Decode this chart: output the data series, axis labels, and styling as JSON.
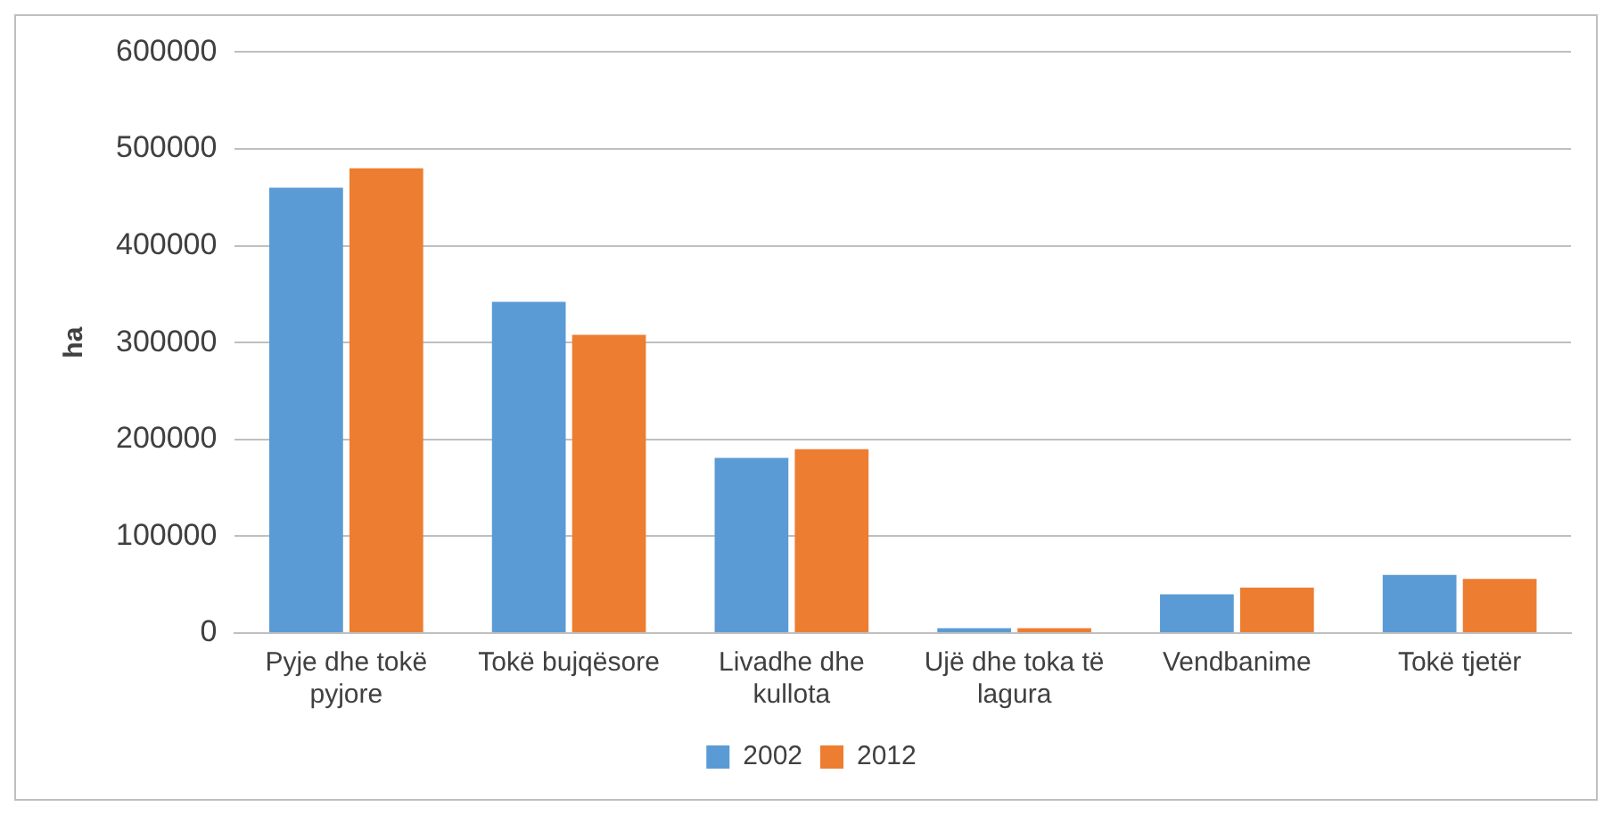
{
  "chart_data": {
    "type": "bar",
    "ylabel": "ha",
    "categories": [
      "Pyje dhe tokë pyjore",
      "Tokë bujqësore",
      "Livadhe dhe kullota",
      "Ujë dhe toka të lagura",
      "Vendbanime",
      "Tokë tjetër"
    ],
    "series": [
      {
        "name": "2002",
        "color": "#5b9bd5",
        "values": [
          460000,
          342000,
          181000,
          5000,
          40000,
          60000
        ]
      },
      {
        "name": "2012",
        "color": "#ed7d31",
        "values": [
          480000,
          308000,
          190000,
          5000,
          47000,
          56000
        ]
      }
    ],
    "ylim": [
      0,
      600000
    ],
    "yticks": [
      0,
      100000,
      200000,
      300000,
      400000,
      500000,
      600000
    ],
    "grid": "y",
    "legend": "bottom"
  }
}
